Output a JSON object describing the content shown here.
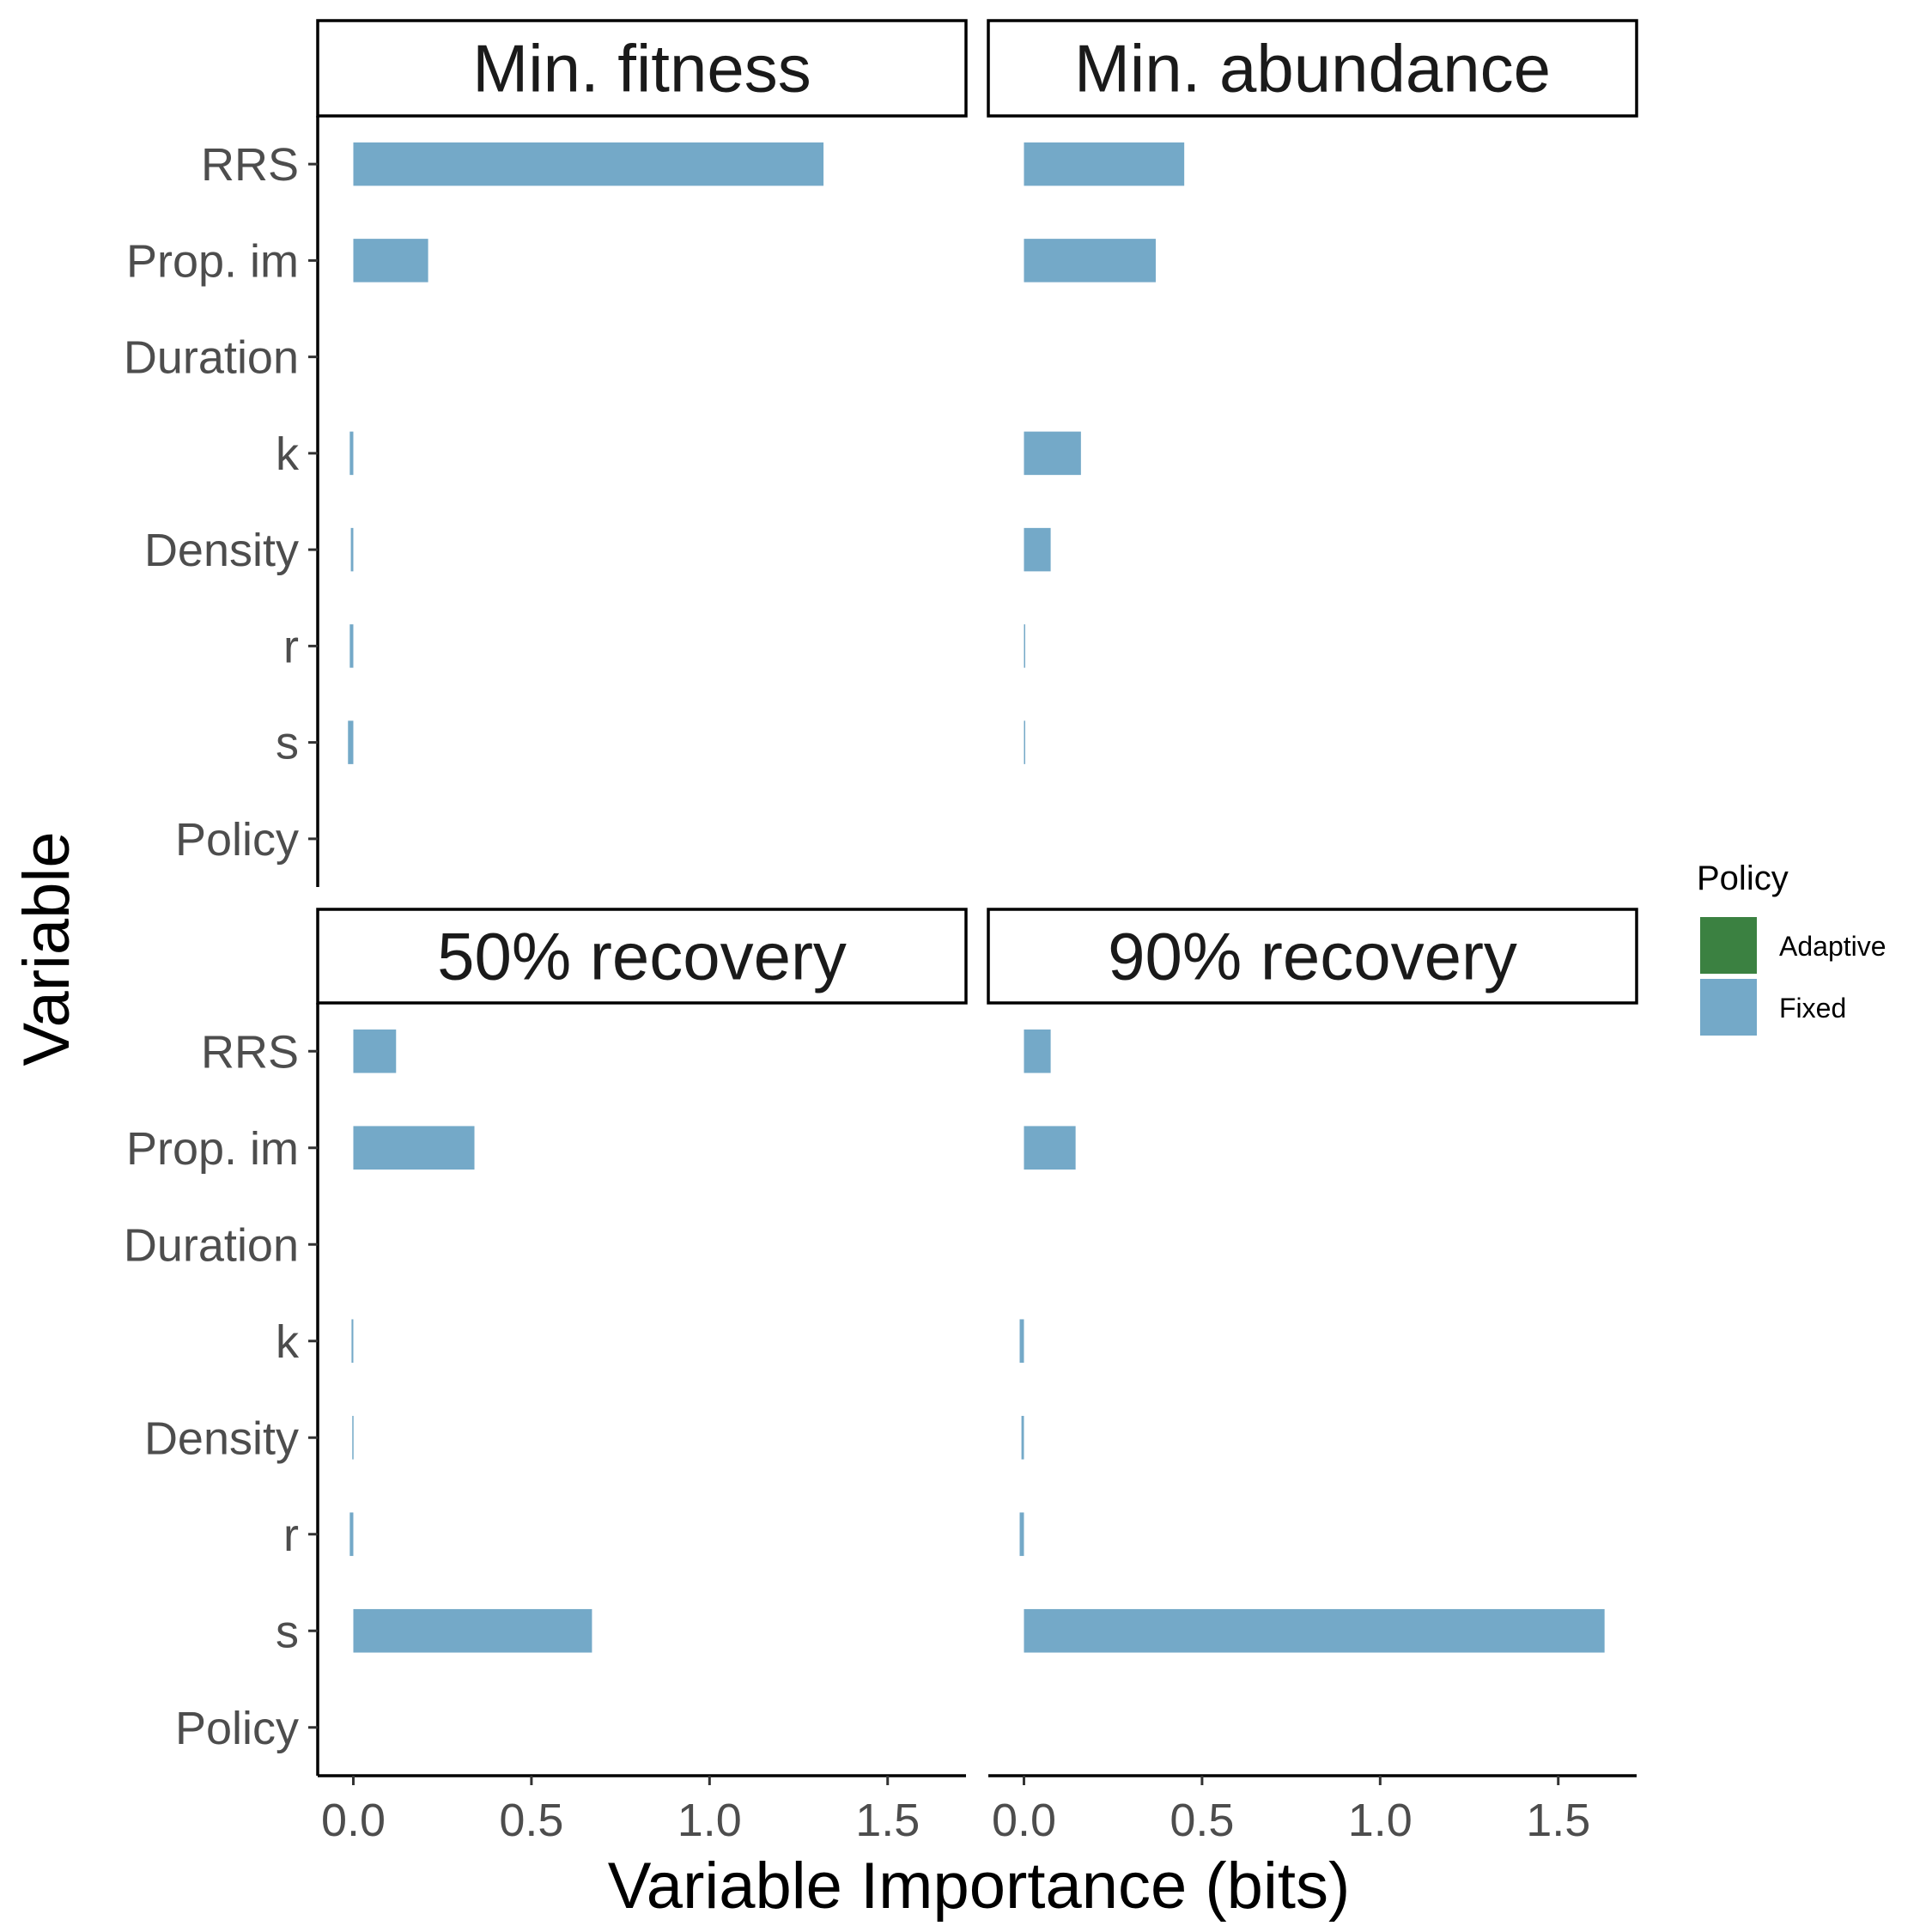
{
  "chart_data": {
    "type": "bar",
    "orientation": "horizontal",
    "xlabel": "Variable Importance (bits)",
    "ylabel": "Variable",
    "categories": [
      "RRS",
      "Prop. im",
      "Duration",
      "k",
      "Density",
      "r",
      "s",
      "Policy"
    ],
    "xlim": [
      -0.1,
      1.72
    ],
    "xticks": [
      0.0,
      0.5,
      1.0,
      1.5
    ],
    "xtick_labels": [
      "0.0",
      "0.5",
      "1.0",
      "1.5"
    ],
    "grid": false,
    "legend": {
      "title": "Policy",
      "position": "right",
      "entries": [
        {
          "name": "Adaptive",
          "color": "#3b8141"
        },
        {
          "name": "Fixed",
          "color": "#74a9c8"
        }
      ]
    },
    "panels": [
      {
        "title": "Min. fitness",
        "series": [
          {
            "name": "Fixed",
            "values": [
              1.32,
              0.21,
              0.0,
              -0.01,
              -0.007,
              -0.01,
              -0.015,
              0.0
            ]
          }
        ]
      },
      {
        "title": "Min. abundance",
        "series": [
          {
            "name": "Fixed",
            "values": [
              0.45,
              0.37,
              0.0,
              0.16,
              0.075,
              0.002,
              0.002,
              0.0
            ]
          }
        ]
      },
      {
        "title": "50% recovery",
        "series": [
          {
            "name": "Fixed",
            "values": [
              0.12,
              0.34,
              0.0,
              -0.005,
              -0.003,
              -0.01,
              0.67,
              0.0
            ]
          }
        ]
      },
      {
        "title": "90% recovery",
        "series": [
          {
            "name": "Fixed",
            "values": [
              0.075,
              0.145,
              0.0,
              -0.012,
              -0.007,
              -0.012,
              1.63,
              0.0
            ]
          }
        ]
      }
    ]
  }
}
